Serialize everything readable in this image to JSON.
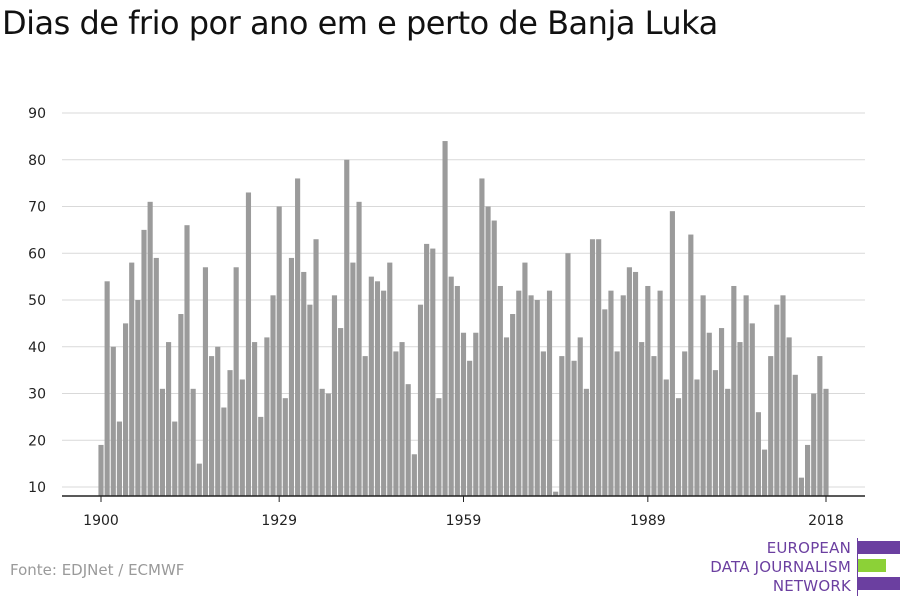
{
  "title": "Dias de frio por ano em e perto de Banja Luka",
  "source": "Fonte: EDJNet / ECMWF",
  "logo": {
    "lines": [
      "EUROPEAN",
      "DATA JOURNALISM",
      "NETWORK"
    ],
    "colors": {
      "purple": "#6b3fa0",
      "green": "#8cd137"
    }
  },
  "chart_data": {
    "type": "bar",
    "title": "Dias de frio por ano em e perto de Banja Luka",
    "xlabel": "",
    "ylabel": "",
    "x_ticks": [
      1900,
      1929,
      1959,
      1989,
      2018
    ],
    "y_ticks": [
      10,
      20,
      30,
      40,
      50,
      60,
      70,
      80,
      90
    ],
    "ylim": [
      8,
      92
    ],
    "grid": true,
    "bar_color": "#9b9b9b",
    "x": [
      1900,
      1901,
      1902,
      1903,
      1904,
      1905,
      1906,
      1907,
      1908,
      1909,
      1910,
      1911,
      1912,
      1913,
      1914,
      1915,
      1916,
      1917,
      1918,
      1919,
      1920,
      1921,
      1922,
      1923,
      1924,
      1925,
      1926,
      1927,
      1928,
      1929,
      1930,
      1931,
      1932,
      1933,
      1934,
      1935,
      1936,
      1937,
      1938,
      1939,
      1940,
      1941,
      1942,
      1943,
      1944,
      1945,
      1946,
      1947,
      1948,
      1949,
      1950,
      1951,
      1952,
      1953,
      1954,
      1955,
      1956,
      1957,
      1958,
      1959,
      1960,
      1961,
      1962,
      1963,
      1964,
      1965,
      1966,
      1967,
      1968,
      1969,
      1970,
      1971,
      1972,
      1973,
      1974,
      1975,
      1976,
      1977,
      1978,
      1979,
      1980,
      1981,
      1982,
      1983,
      1984,
      1985,
      1986,
      1987,
      1988,
      1989,
      1990,
      1991,
      1992,
      1993,
      1994,
      1995,
      1996,
      1997,
      1998,
      1999,
      2000,
      2001,
      2002,
      2003,
      2004,
      2005,
      2006,
      2007,
      2008,
      2009,
      2010,
      2011,
      2012,
      2013,
      2014,
      2015,
      2016,
      2017,
      2018
    ],
    "values": [
      19,
      54,
      40,
      24,
      45,
      58,
      50,
      65,
      71,
      59,
      31,
      41,
      24,
      47,
      66,
      31,
      15,
      57,
      38,
      40,
      27,
      35,
      57,
      33,
      73,
      41,
      25,
      42,
      51,
      70,
      29,
      59,
      76,
      56,
      49,
      63,
      31,
      30,
      51,
      44,
      80,
      58,
      71,
      38,
      55,
      54,
      52,
      58,
      39,
      41,
      32,
      17,
      49,
      62,
      61,
      29,
      84,
      55,
      53,
      43,
      37,
      43,
      76,
      70,
      67,
      53,
      42,
      47,
      52,
      58,
      51,
      50,
      39,
      52,
      9,
      38,
      60,
      37,
      42,
      31,
      63,
      63,
      48,
      52,
      39,
      51,
      57,
      56,
      41,
      53,
      38,
      52,
      33,
      69,
      29,
      39,
      64,
      33,
      51,
      43,
      35,
      44,
      31,
      53,
      41,
      51,
      45,
      26,
      18,
      38,
      49,
      51,
      42,
      34,
      12,
      19,
      30,
      38,
      31
    ]
  }
}
